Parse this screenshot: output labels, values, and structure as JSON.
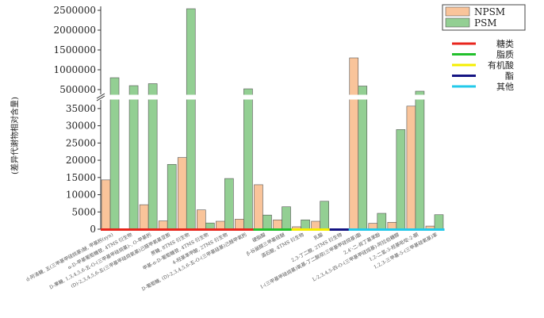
{
  "chart_data": {
    "type": "bar",
    "ylabel": "(差异代谢物相对含量)",
    "y_axis": {
      "broken": true,
      "lower_ticks": [
        0,
        5000,
        10000,
        15000,
        20000,
        25000,
        30000,
        35000
      ],
      "lower_range": [
        0,
        37500
      ],
      "upper_ticks": [
        500000,
        1000000,
        1500000,
        2000000,
        2500000
      ],
      "upper_range": [
        380000,
        2600000
      ]
    },
    "categories": [
      "d-阿洛糖, 五(三甲基甲硅烷基)醚, 甲基肟(syn)",
      "α-D-甲基葡萄糖苷, 4TMS 衍生物",
      "D-果糖, 1,3,4,5,6-五-O-(三甲基甲硅烷基)-, O-甲基肟",
      "(D)-2,3,4,5,6-五(三甲基甲硅烷氧基)己醛甲氧基亚胺",
      "蔗糖, 8TMS 衍生物",
      "甲基-α-D-葡萄糖苷, 4TMS 衍生物",
      "4-羟基苯甲酸, 2TMS 衍生物",
      "D-葡萄糖, (D)-2,3,4,5,6-五-O-(三甲基硅基)己醛甲氧肟",
      "硬脂酸",
      "β-谷甾醇三甲基硅醚",
      "酒石酸, 4TMS 衍生物",
      "乳酸",
      "2,3-丁二醇, 2TMS 衍生物",
      "1-(三甲基甲硅烷基)氧基-丁二酸双(三甲基甲硅烷基)酯",
      "2,4'-二-叔丁基苯酚",
      "L-2,3,4,5-四-O-(三甲基甲硅烷基)-阿拉伯糖醇",
      "1,2-二氢-3-羟基吡啶-2-酮",
      "1,2,3-三甲基-5-(三甲基硅氧基)苯"
    ],
    "category_groups": [
      "糖类",
      "糖类",
      "糖类",
      "糖类",
      "糖类",
      "糖类",
      "糖类",
      "糖类",
      "脂质",
      "脂质",
      "有机酸",
      "有机酸",
      "酯",
      "其他",
      "其他",
      "其他",
      "其他",
      "其他"
    ],
    "series": [
      {
        "name": "NPSM",
        "color": "#f9c49a",
        "values": [
          14300,
          0,
          7100,
          2400,
          20800,
          5600,
          2300,
          2900,
          12900,
          2700,
          700,
          2300,
          0,
          1300000,
          1700,
          2000,
          35700,
          900
        ]
      },
      {
        "name": "PSM",
        "color": "#93cf93",
        "values": [
          800000,
          600000,
          650000,
          18800,
          2540000,
          1800,
          14700,
          520000,
          4100,
          6500,
          2700,
          8100,
          0,
          590000,
          4600,
          28900,
          460000,
          4200
        ]
      }
    ],
    "group_legend": [
      {
        "name": "糖类",
        "color": "#e8261d"
      },
      {
        "name": "脂质",
        "color": "#22c02c"
      },
      {
        "name": "有机酸",
        "color": "#f5ee00"
      },
      {
        "name": "酯",
        "color": "#141483"
      },
      {
        "name": "其他",
        "color": "#23c9ea"
      }
    ]
  }
}
